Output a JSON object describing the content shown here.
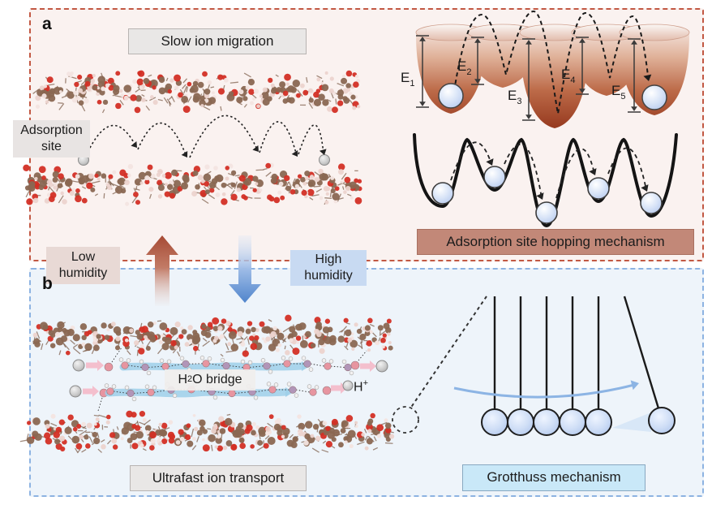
{
  "panels": {
    "a": {
      "letter": "a",
      "border_color": "#c25843",
      "bg": "#faf2f0"
    },
    "b": {
      "letter": "b",
      "border_color": "#8db3e2",
      "bg": "#eef4fa"
    }
  },
  "labels": {
    "slow_ion_migration": "Slow ion migration",
    "adsorption_site": "Adsorption site",
    "hopping_mechanism": "Adsorption site hopping mechanism",
    "low_humidity": "Low humidity",
    "high_humidity": "High humidity",
    "h2o_bridge": {
      "pre": "H",
      "sub": "2",
      "post": "O bridge"
    },
    "h_plus": {
      "base": "H",
      "sup": "+"
    },
    "ultrafast_ion_transport": "Ultrafast ion transport",
    "grotthuss_mechanism": "Grotthuss mechanism"
  },
  "energy_wells": {
    "labels": [
      {
        "base": "E",
        "sub": "1"
      },
      {
        "base": "E",
        "sub": "2"
      },
      {
        "base": "E",
        "sub": "3"
      },
      {
        "base": "E",
        "sub": "4"
      },
      {
        "base": "E",
        "sub": "5"
      }
    ]
  },
  "colors": {
    "well_dark": "#93351b",
    "hop_box": "#c28878",
    "grotthuss_box": "#c9e8f8",
    "ion_gray": "#c0c0c0",
    "proton_arrow_pink": "#f3bcca",
    "water_band_blue": "#9ecfe9",
    "cradle_ball_blue": "#cfdef6"
  }
}
